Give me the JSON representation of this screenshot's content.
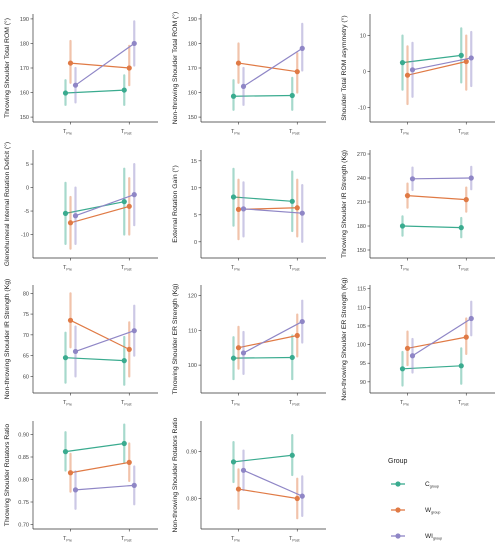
{
  "legend": {
    "title": "Group",
    "items": [
      {
        "main": "C",
        "sub": "group",
        "color": "#3aab8f"
      },
      {
        "main": "W",
        "sub": "group",
        "color": "#e07a45"
      },
      {
        "main": "WI",
        "sub": "group",
        "color": "#8f86c6"
      }
    ]
  },
  "x_ticks": [
    {
      "main": "T",
      "sub": "Pre"
    },
    {
      "main": "T",
      "sub": "Post"
    }
  ],
  "chart_data": [
    {
      "type": "line",
      "ylabel": "Throwing Shoulder Total ROM (°)",
      "yticks": [
        150,
        160,
        170,
        180,
        190
      ],
      "ylim": [
        148,
        192
      ],
      "series": [
        {
          "name": "Cgroup",
          "values": [
            159.8,
            161
          ],
          "ci": [
            [
              155,
              165
            ],
            [
              155,
              167
            ]
          ]
        },
        {
          "name": "Wgroup",
          "values": [
            172,
            170
          ],
          "ci": [
            [
              164,
              181
            ],
            [
              163,
              179
            ]
          ]
        },
        {
          "name": "WIgroup",
          "values": [
            163,
            180
          ],
          "ci": [
            [
              156,
              170
            ],
            [
              171,
              189
            ]
          ]
        }
      ]
    },
    {
      "type": "line",
      "ylabel": "Non-throwing Shoulder Total ROM (°)",
      "yticks": [
        150,
        160,
        170,
        180,
        190
      ],
      "ylim": [
        148,
        192
      ],
      "series": [
        {
          "name": "Cgroup",
          "values": [
            158.5,
            158.8
          ],
          "ci": [
            [
              153,
              165
            ],
            [
              153,
              166
            ]
          ]
        },
        {
          "name": "Wgroup",
          "values": [
            172,
            168.5
          ],
          "ci": [
            [
              164,
              180
            ],
            [
              160,
              176
            ]
          ]
        },
        {
          "name": "WIgroup",
          "values": [
            162.5,
            178
          ],
          "ci": [
            [
              155,
              170
            ],
            [
              169,
              188
            ]
          ]
        }
      ]
    },
    {
      "type": "line",
      "ylabel": "Shoulder Total ROM asymmetry (°)",
      "yticks": [
        -10,
        0,
        10
      ],
      "ylim": [
        -14,
        16
      ],
      "series": [
        {
          "name": "Cgroup",
          "values": [
            2.5,
            4.5
          ],
          "ci": [
            [
              -5,
              10
            ],
            [
              -3,
              12
            ]
          ]
        },
        {
          "name": "Wgroup",
          "values": [
            -1,
            2.8
          ],
          "ci": [
            [
              -9,
              7
            ],
            [
              -5,
              10
            ]
          ]
        },
        {
          "name": "WIgroup",
          "values": [
            0.5,
            3.8
          ],
          "ci": [
            [
              -7,
              8
            ],
            [
              -4,
              11
            ]
          ]
        }
      ]
    },
    {
      "type": "line",
      "ylabel": "Glenohumeral Internal Rotation Deficit (°)",
      "yticks": [
        -10,
        -5,
        0,
        5
      ],
      "ylim": [
        -15,
        8
      ],
      "series": [
        {
          "name": "Cgroup",
          "values": [
            -5.5,
            -3
          ],
          "ci": [
            [
              -12,
              1
            ],
            [
              -10,
              4
            ]
          ]
        },
        {
          "name": "Wgroup",
          "values": [
            -7.5,
            -4
          ],
          "ci": [
            [
              -13,
              -2
            ],
            [
              -10,
              2
            ]
          ]
        },
        {
          "name": "WIgroup",
          "values": [
            -6,
            -1.5
          ],
          "ci": [
            [
              -12,
              0
            ],
            [
              -8,
              5
            ]
          ]
        }
      ]
    },
    {
      "type": "line",
      "ylabel": "External Rotation Gain (°)",
      "yticks": [
        0,
        5,
        10,
        15
      ],
      "ylim": [
        -3,
        17
      ],
      "series": [
        {
          "name": "Cgroup",
          "values": [
            8.3,
            7.5
          ],
          "ci": [
            [
              3,
              13.5
            ],
            [
              2,
              13
            ]
          ]
        },
        {
          "name": "Wgroup",
          "values": [
            6,
            6.3
          ],
          "ci": [
            [
              0.5,
              11.5
            ],
            [
              1,
              11.5
            ]
          ]
        },
        {
          "name": "WIgroup",
          "values": [
            6.1,
            5.3
          ],
          "ci": [
            [
              1,
              11
            ],
            [
              0,
              10.5
            ]
          ]
        }
      ]
    },
    {
      "type": "line",
      "ylabel": "Throwing Shoulder IR Strength (Kg)",
      "yticks": [
        150,
        180,
        210,
        240,
        270
      ],
      "ylim": [
        140,
        275
      ],
      "series": [
        {
          "name": "Cgroup",
          "values": [
            180,
            178
          ],
          "ci": [
            [
              168,
              192
            ],
            [
              166,
              190
            ]
          ]
        },
        {
          "name": "Wgroup",
          "values": [
            218,
            213
          ],
          "ci": [
            [
              203,
              233
            ],
            [
              198,
              228
            ]
          ]
        },
        {
          "name": "WIgroup",
          "values": [
            239,
            240
          ],
          "ci": [
            [
              225,
              253
            ],
            [
              226,
              254
            ]
          ]
        }
      ]
    },
    {
      "type": "line",
      "ylabel": "Non-throwing Shoulder IR Strength (Kg)",
      "yticks": [
        60,
        65,
        70,
        75,
        80
      ],
      "ylim": [
        56,
        82
      ],
      "series": [
        {
          "name": "Cgroup",
          "values": [
            64.5,
            63.8
          ],
          "ci": [
            [
              58.5,
              70.5
            ],
            [
              58,
              69.5
            ]
          ]
        },
        {
          "name": "Wgroup",
          "values": [
            73.5,
            66.5
          ],
          "ci": [
            [
              67,
              80
            ],
            [
              60,
              73
            ]
          ]
        },
        {
          "name": "WIgroup",
          "values": [
            66,
            71
          ],
          "ci": [
            [
              60,
              72
            ],
            [
              65,
              77
            ]
          ]
        }
      ]
    },
    {
      "type": "line",
      "ylabel": "Throwing Shoulder ER Strength (Kg)",
      "yticks": [
        100,
        110,
        120
      ],
      "ylim": [
        92,
        123
      ],
      "series": [
        {
          "name": "Cgroup",
          "values": [
            102,
            102.2
          ],
          "ci": [
            [
              96,
              108
            ],
            [
              96,
              108.5
            ]
          ]
        },
        {
          "name": "Wgroup",
          "values": [
            105,
            108.5
          ],
          "ci": [
            [
              99,
              111
            ],
            [
              102.5,
              114.5
            ]
          ]
        },
        {
          "name": "WIgroup",
          "values": [
            103.5,
            112.5
          ],
          "ci": [
            [
              97.5,
              109.5
            ],
            [
              106.5,
              118.5
            ]
          ]
        }
      ]
    },
    {
      "type": "line",
      "ylabel": "Non-throwing Shoulder ER Strength (Kg)",
      "yticks": [
        90,
        95,
        100,
        105,
        110,
        115
      ],
      "ylim": [
        87,
        116
      ],
      "series": [
        {
          "name": "Cgroup",
          "values": [
            93.5,
            94.3
          ],
          "ci": [
            [
              89,
              98
            ],
            [
              89.5,
              99
            ]
          ]
        },
        {
          "name": "Wgroup",
          "values": [
            99,
            102
          ],
          "ci": [
            [
              94.5,
              103.5
            ],
            [
              97.5,
              107
            ]
          ]
        },
        {
          "name": "WIgroup",
          "values": [
            97,
            107
          ],
          "ci": [
            [
              92.5,
              101.5
            ],
            [
              102.5,
              111.5
            ]
          ]
        }
      ]
    },
    {
      "type": "line",
      "ylabel": "Throwing Shoulder Rotators Ratio",
      "yticks": [
        0.7,
        0.75,
        0.8,
        0.85,
        0.9
      ],
      "ylim": [
        0.69,
        0.93
      ],
      "series": [
        {
          "name": "Cgroup",
          "values": [
            0.862,
            0.88
          ],
          "ci": [
            [
              0.82,
              0.905
            ],
            [
              0.837,
              0.922
            ]
          ]
        },
        {
          "name": "Wgroup",
          "values": [
            0.815,
            0.838
          ],
          "ci": [
            [
              0.773,
              0.857
            ],
            [
              0.797,
              0.88
            ]
          ]
        },
        {
          "name": "WIgroup",
          "values": [
            0.777,
            0.787
          ],
          "ci": [
            [
              0.735,
              0.818
            ],
            [
              0.745,
              0.829
            ]
          ]
        }
      ]
    },
    {
      "type": "line",
      "ylabel": "Non-throwing Shoulder Rotators Ratio",
      "yticks": [
        0.8,
        0.9
      ],
      "ylim": [
        0.735,
        0.965
      ],
      "series": [
        {
          "name": "Cgroup",
          "values": [
            0.878,
            0.892
          ],
          "ci": [
            [
              0.835,
              0.92
            ],
            [
              0.85,
              0.935
            ]
          ]
        },
        {
          "name": "Wgroup",
          "values": [
            0.82,
            0.8
          ],
          "ci": [
            [
              0.778,
              0.862
            ],
            [
              0.758,
              0.842
            ]
          ]
        },
        {
          "name": "WIgroup",
          "values": [
            0.86,
            0.805
          ],
          "ci": [
            [
              0.818,
              0.902
            ],
            [
              0.763,
              0.847
            ]
          ]
        }
      ]
    }
  ]
}
